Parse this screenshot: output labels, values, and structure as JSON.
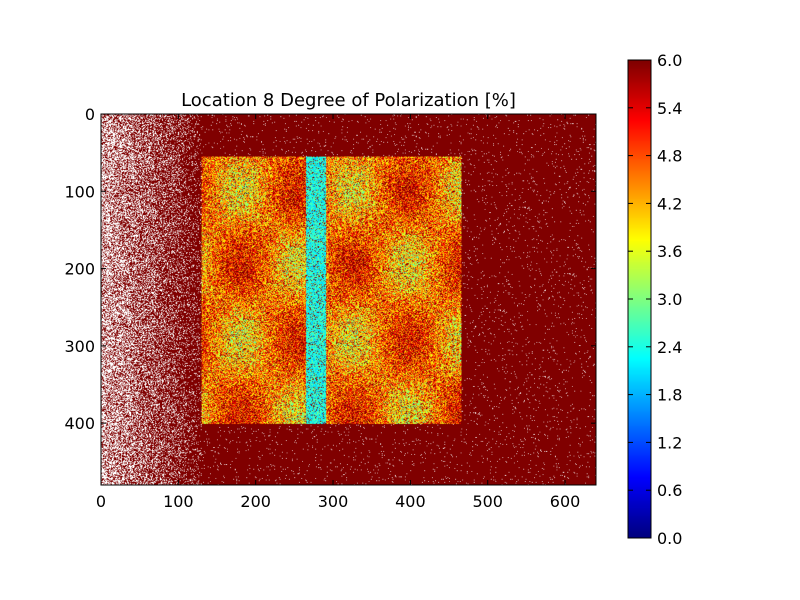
{
  "chart_data": {
    "type": "heatmap",
    "title": "Location 8 Degree of Polarization [%]",
    "xlabel": "",
    "ylabel": "",
    "image_width": 640,
    "image_height": 480,
    "xlim": [
      0,
      640
    ],
    "ylim": [
      480,
      0
    ],
    "x_ticks": [
      0,
      100,
      200,
      300,
      400,
      500,
      600
    ],
    "y_ticks": [
      0,
      100,
      200,
      300,
      400
    ],
    "colorbar": {
      "colormap": "jet",
      "vmin": 0.0,
      "vmax": 6.0,
      "ticks": [
        "0.0",
        "0.6",
        "1.2",
        "1.8",
        "2.4",
        "3.0",
        "3.6",
        "4.2",
        "4.8",
        "5.4",
        "6.0"
      ]
    },
    "regions": [
      {
        "name": "saturated background",
        "value": 6.0
      },
      {
        "name": "speckled noise left",
        "x_range": [
          0,
          130
        ],
        "value": 6.0
      },
      {
        "name": "illuminated sample",
        "x_range": [
          130,
          465
        ],
        "y_range": [
          55,
          400
        ],
        "value": 4.5
      },
      {
        "name": "vertical streak",
        "x_range": [
          265,
          290
        ],
        "y_range": [
          55,
          400
        ],
        "value": 2.4
      }
    ],
    "grid": false
  }
}
